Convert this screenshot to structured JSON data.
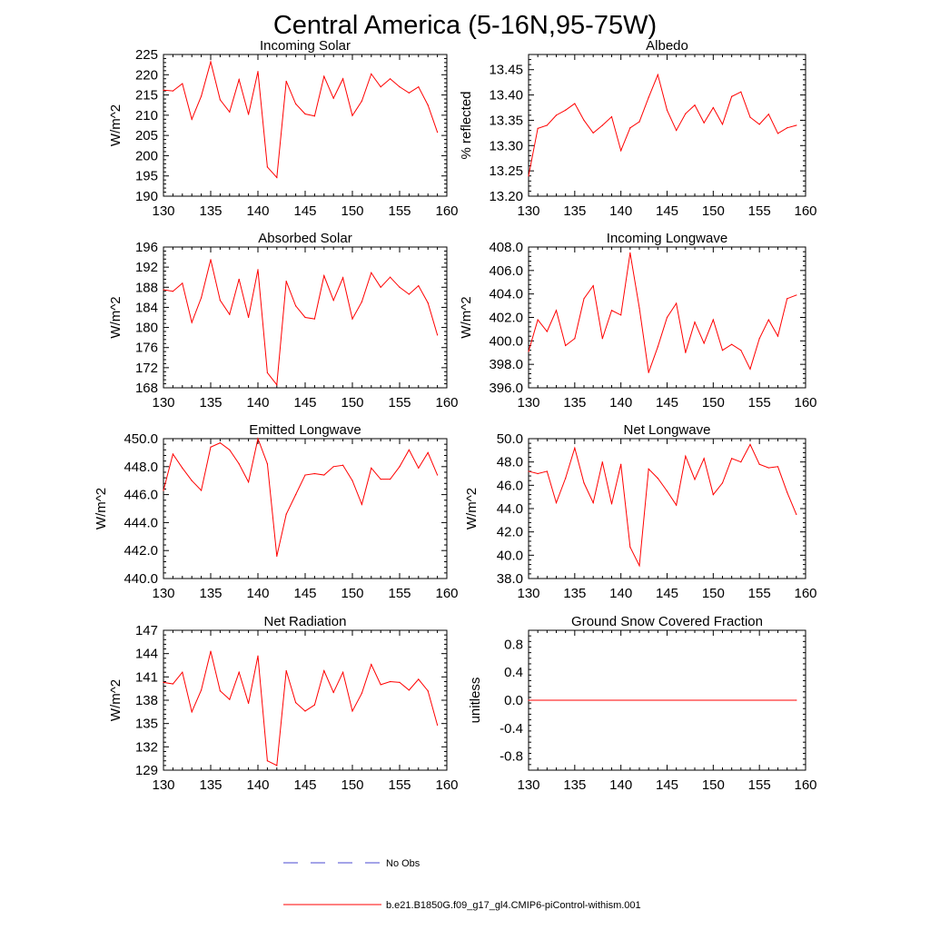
{
  "title": "Central America (5-16N,95-75W)",
  "legend": {
    "obs_label": "No Obs",
    "model_label": "b.e21.B1850G.f09_g17_gl4.CMIP6-piControl-withism.001",
    "obs_color": "#4a4ad0",
    "model_color": "#ff0000"
  },
  "line_color": "#ff0000",
  "chart_data": [
    {
      "type": "line",
      "title": "Incoming Solar",
      "ylabel": "W/m^2",
      "xlim": [
        130,
        160
      ],
      "ylim": [
        190,
        225
      ],
      "xticks": [
        130,
        135,
        140,
        145,
        150,
        155,
        160
      ],
      "yticks": [
        190,
        195,
        200,
        205,
        210,
        215,
        220,
        225
      ],
      "ytick_labels": [
        "190",
        "195",
        "200",
        "205",
        "210",
        "215",
        "220",
        "225"
      ],
      "grid": false,
      "x": [
        130,
        131,
        132,
        133,
        134,
        135,
        136,
        137,
        138,
        139,
        140,
        141,
        142,
        143,
        144,
        145,
        146,
        147,
        148,
        149,
        150,
        151,
        152,
        153,
        154,
        155,
        156,
        157,
        158,
        159
      ],
      "values": [
        216.2,
        216.0,
        217.8,
        209.0,
        214.7,
        223.2,
        213.8,
        210.8,
        218.8,
        210.2,
        220.8,
        197.2,
        194.6,
        218.4,
        212.8,
        210.3,
        209.8,
        219.6,
        214.2,
        219.0,
        209.9,
        213.5,
        220.2,
        217.0,
        219.0,
        217.0,
        215.5,
        217.0,
        212.5,
        205.8
      ]
    },
    {
      "type": "line",
      "title": "Albedo",
      "ylabel": "% reflected",
      "xlim": [
        130,
        160
      ],
      "ylim": [
        13.2,
        13.48
      ],
      "xticks": [
        130,
        135,
        140,
        145,
        150,
        155,
        160
      ],
      "yticks": [
        13.2,
        13.25,
        13.3,
        13.35,
        13.4,
        13.45
      ],
      "ytick_labels": [
        "13.20",
        "13.25",
        "13.30",
        "13.35",
        "13.40",
        "13.45"
      ],
      "grid": false,
      "x": [
        130,
        131,
        132,
        133,
        134,
        135,
        136,
        137,
        138,
        139,
        140,
        141,
        142,
        143,
        144,
        145,
        146,
        147,
        148,
        149,
        150,
        151,
        152,
        153,
        154,
        155,
        156,
        157,
        158,
        159
      ],
      "values": [
        13.24,
        13.334,
        13.34,
        13.36,
        13.37,
        13.383,
        13.35,
        13.325,
        13.34,
        13.357,
        13.29,
        13.335,
        13.347,
        13.395,
        13.44,
        13.37,
        13.33,
        13.363,
        13.38,
        13.345,
        13.375,
        13.342,
        13.397,
        13.406,
        13.356,
        13.342,
        13.362,
        13.324,
        13.335,
        13.34
      ]
    },
    {
      "type": "line",
      "title": "Absorbed Solar",
      "ylabel": "W/m^2",
      "xlim": [
        130,
        160
      ],
      "ylim": [
        168,
        196
      ],
      "xticks": [
        130,
        135,
        140,
        145,
        150,
        155,
        160
      ],
      "yticks": [
        168,
        172,
        176,
        180,
        184,
        188,
        192,
        196
      ],
      "ytick_labels": [
        "168",
        "172",
        "176",
        "180",
        "184",
        "188",
        "192",
        "196"
      ],
      "grid": false,
      "x": [
        130,
        131,
        132,
        133,
        134,
        135,
        136,
        137,
        138,
        139,
        140,
        141,
        142,
        143,
        144,
        145,
        146,
        147,
        148,
        149,
        150,
        151,
        152,
        153,
        154,
        155,
        156,
        157,
        158,
        159
      ],
      "values": [
        187.5,
        187.2,
        188.8,
        181.0,
        185.9,
        193.5,
        185.4,
        182.6,
        189.6,
        182.0,
        191.5,
        171.0,
        168.6,
        189.2,
        184.3,
        182.0,
        181.7,
        190.3,
        185.4,
        189.9,
        181.7,
        185.1,
        190.9,
        188.0,
        190.0,
        188.0,
        186.6,
        188.3,
        184.9,
        178.5
      ]
    },
    {
      "type": "line",
      "title": "Incoming Longwave",
      "ylabel": "W/m^2",
      "xlim": [
        130,
        160
      ],
      "ylim": [
        396,
        408
      ],
      "xticks": [
        130,
        135,
        140,
        145,
        150,
        155,
        160
      ],
      "yticks": [
        396,
        398,
        400,
        402,
        404,
        406,
        408
      ],
      "ytick_labels": [
        "396.0",
        "398.0",
        "400.0",
        "402.0",
        "404.0",
        "406.0",
        "408.0"
      ],
      "grid": false,
      "x": [
        130,
        131,
        132,
        133,
        134,
        135,
        136,
        137,
        138,
        139,
        140,
        141,
        142,
        143,
        144,
        145,
        146,
        147,
        148,
        149,
        150,
        151,
        152,
        153,
        154,
        155,
        156,
        157,
        158,
        159
      ],
      "values": [
        399.1,
        401.8,
        400.8,
        402.6,
        399.6,
        400.2,
        403.6,
        404.7,
        400.2,
        402.6,
        402.2,
        407.5,
        402.8,
        397.3,
        399.5,
        402.0,
        403.2,
        399.0,
        401.6,
        399.8,
        401.8,
        399.2,
        399.7,
        399.2,
        397.6,
        400.2,
        401.8,
        400.4,
        403.6,
        403.9
      ]
    },
    {
      "type": "line",
      "title": "Emitted Longwave",
      "ylabel": "W/m^2",
      "xlim": [
        130,
        160
      ],
      "ylim": [
        440,
        450
      ],
      "xticks": [
        130,
        135,
        140,
        145,
        150,
        155,
        160
      ],
      "yticks": [
        440,
        442,
        444,
        446,
        448,
        450
      ],
      "ytick_labels": [
        "440.0",
        "442.0",
        "444.0",
        "446.0",
        "448.0",
        "450.0"
      ],
      "grid": false,
      "x": [
        130,
        131,
        132,
        133,
        134,
        135,
        136,
        137,
        138,
        139,
        140,
        141,
        142,
        143,
        144,
        145,
        146,
        147,
        148,
        149,
        150,
        151,
        152,
        153,
        154,
        155,
        156,
        157,
        158,
        159
      ],
      "values": [
        446.3,
        448.9,
        447.9,
        447.0,
        446.3,
        449.4,
        449.7,
        449.2,
        448.2,
        446.9,
        450.0,
        448.2,
        441.6,
        444.6,
        446.0,
        447.4,
        447.5,
        447.4,
        448.0,
        448.1,
        447.0,
        445.3,
        447.9,
        447.1,
        447.1,
        448.0,
        449.2,
        447.9,
        449.0,
        447.4
      ]
    },
    {
      "type": "line",
      "title": "Net Longwave",
      "ylabel": "W/m^2",
      "xlim": [
        130,
        160
      ],
      "ylim": [
        38,
        50
      ],
      "xticks": [
        130,
        135,
        140,
        145,
        150,
        155,
        160
      ],
      "yticks": [
        38,
        40,
        42,
        44,
        46,
        48,
        50
      ],
      "ytick_labels": [
        "38.0",
        "40.0",
        "42.0",
        "44.0",
        "46.0",
        "48.0",
        "50.0"
      ],
      "grid": false,
      "x": [
        130,
        131,
        132,
        133,
        134,
        135,
        136,
        137,
        138,
        139,
        140,
        141,
        142,
        143,
        144,
        145,
        146,
        147,
        148,
        149,
        150,
        151,
        152,
        153,
        154,
        155,
        156,
        157,
        158,
        159
      ],
      "values": [
        47.2,
        47.0,
        47.2,
        44.5,
        46.6,
        49.2,
        46.2,
        44.5,
        48.0,
        44.4,
        47.8,
        40.7,
        39.1,
        47.4,
        46.6,
        45.5,
        44.3,
        48.5,
        46.5,
        48.3,
        45.2,
        46.2,
        48.3,
        48.0,
        49.5,
        47.8,
        47.5,
        47.6,
        45.4,
        43.5
      ]
    },
    {
      "type": "line",
      "title": "Net Radiation",
      "ylabel": "W/m^2",
      "xlim": [
        130,
        160
      ],
      "ylim": [
        129,
        147
      ],
      "xticks": [
        130,
        135,
        140,
        145,
        150,
        155,
        160
      ],
      "yticks": [
        129,
        132,
        135,
        138,
        141,
        144,
        147
      ],
      "ytick_labels": [
        "129",
        "132",
        "135",
        "138",
        "141",
        "144",
        "147"
      ],
      "grid": false,
      "x": [
        130,
        131,
        132,
        133,
        134,
        135,
        136,
        137,
        138,
        139,
        140,
        141,
        142,
        143,
        144,
        145,
        146,
        147,
        148,
        149,
        150,
        151,
        152,
        153,
        154,
        155,
        156,
        157,
        158,
        159
      ],
      "values": [
        140.3,
        140.1,
        141.6,
        136.5,
        139.3,
        144.3,
        139.2,
        138.1,
        141.6,
        137.6,
        143.7,
        130.2,
        129.6,
        141.8,
        137.7,
        136.6,
        137.4,
        141.8,
        139.0,
        141.6,
        136.6,
        138.9,
        142.6,
        140.0,
        140.4,
        140.3,
        139.3,
        140.7,
        139.2,
        134.8
      ]
    },
    {
      "type": "line",
      "title": "Ground Snow Covered Fraction",
      "ylabel": "unitless",
      "xlim": [
        130,
        160
      ],
      "ylim": [
        -1,
        1
      ],
      "xticks": [
        130,
        135,
        140,
        145,
        150,
        155,
        160
      ],
      "yticks": [
        -0.8,
        -0.4,
        0.0,
        0.4,
        0.8
      ],
      "ytick_labels": [
        "-0.8",
        "-0.4",
        "0.0",
        "0.4",
        "0.8"
      ],
      "grid": false,
      "x": [
        130,
        159
      ],
      "values": [
        0.0,
        0.0
      ]
    }
  ]
}
